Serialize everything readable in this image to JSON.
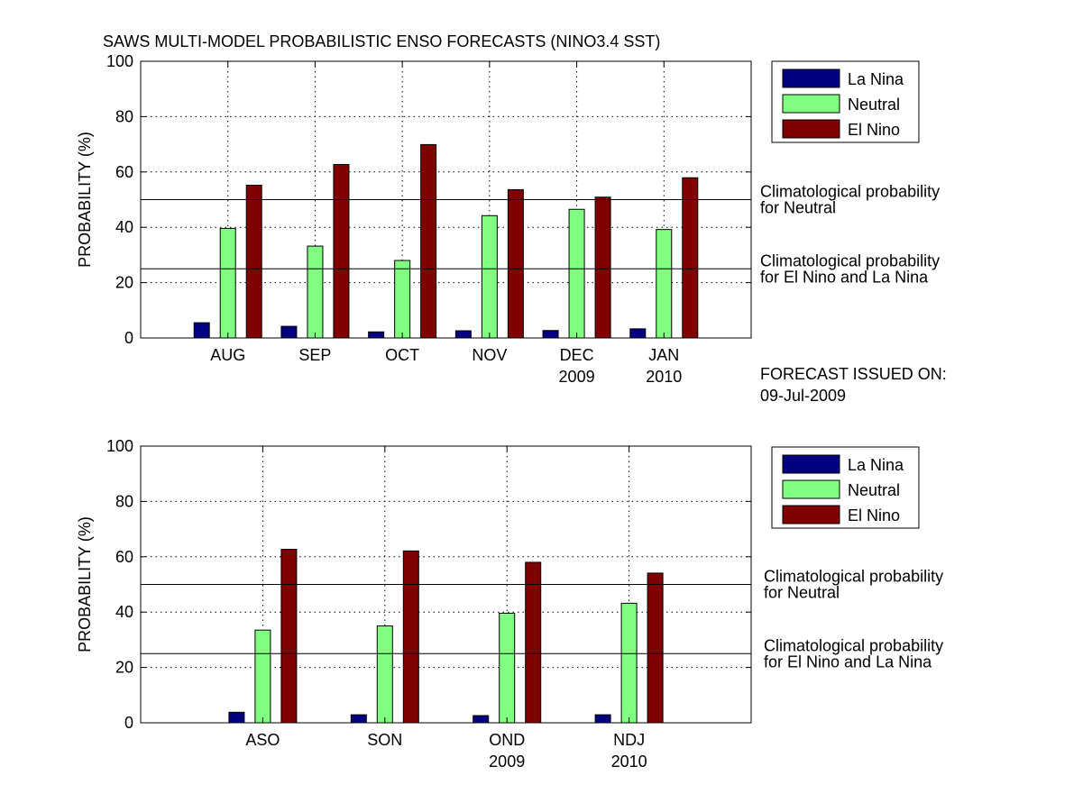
{
  "figure_title": "SAWS MULTI-MODEL PROBABILISTIC ENSO FORECASTS (NINO3.4 SST)",
  "issued_label": "FORECAST ISSUED ON:",
  "issued_date": "09-Jul-2009",
  "colors": {
    "La Nina": "#000080",
    "Neutral": "#80ff80",
    "El Nino": "#800000"
  },
  "chart_data": [
    {
      "type": "bar",
      "ylabel": "PROBABILITY (%)",
      "ylim": [
        0,
        100
      ],
      "yticks": [
        0,
        20,
        40,
        60,
        80,
        100
      ],
      "xlim": [
        0,
        7
      ],
      "grid": true,
      "legend_position": "top-right, outside plot",
      "categories": [
        "AUG",
        "SEP",
        "OCT",
        "NOV",
        "DEC",
        "JAN"
      ],
      "category_sublabels": [
        "",
        "",
        "",
        "",
        "2009",
        "2010"
      ],
      "series": [
        {
          "name": "La Nina",
          "values": [
            5.5,
            4.2,
            2.2,
            2.6,
            2.7,
            3.3
          ]
        },
        {
          "name": "Neutral",
          "values": [
            39.6,
            33.2,
            28.0,
            44.2,
            46.5,
            39.2
          ]
        },
        {
          "name": "El Nino",
          "values": [
            55.2,
            62.7,
            69.9,
            53.6,
            50.9,
            57.9
          ]
        }
      ],
      "reference_lines": [
        {
          "value": 50,
          "label_line1": "Climatological probability",
          "label_line2": "for Neutral"
        },
        {
          "value": 25,
          "label_line1": "Climatological probability",
          "label_line2": "for El Nino and La Nina"
        }
      ]
    },
    {
      "type": "bar",
      "ylabel": "PROBABILITY (%)",
      "ylim": [
        0,
        100
      ],
      "yticks": [
        0,
        20,
        40,
        60,
        80,
        100
      ],
      "xlim": [
        0,
        5
      ],
      "grid": true,
      "legend_position": "top-right, outside plot",
      "categories": [
        "ASO",
        "SON",
        "OND",
        "NDJ"
      ],
      "category_sublabels": [
        "",
        "",
        "2009",
        "2010"
      ],
      "series": [
        {
          "name": "La Nina",
          "values": [
            3.8,
            2.9,
            2.6,
            2.9
          ]
        },
        {
          "name": "Neutral",
          "values": [
            33.5,
            35.0,
            39.6,
            43.2
          ]
        },
        {
          "name": "El Nino",
          "values": [
            62.7,
            62.1,
            58.0,
            54.1
          ]
        }
      ],
      "reference_lines": [
        {
          "value": 50,
          "label_line1": "Climatological probability",
          "label_line2": "for Neutral"
        },
        {
          "value": 25,
          "label_line1": "Climatological probability",
          "label_line2": "for El Nino and La Nina"
        }
      ]
    }
  ]
}
